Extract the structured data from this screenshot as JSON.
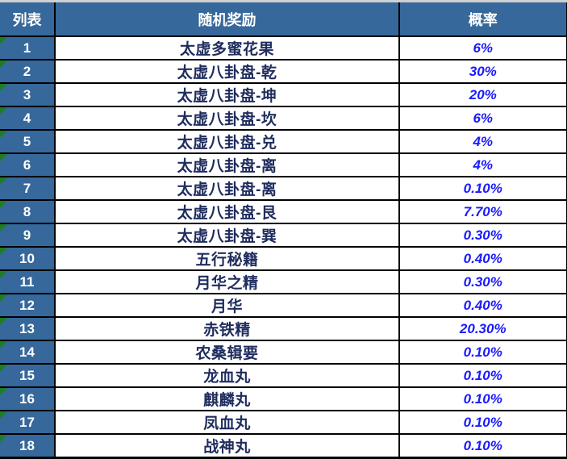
{
  "colors": {
    "header_bg": "#36689B",
    "header_text": "#FFFFFF",
    "reward_text": "#1F2C5E",
    "probability_text": "#1A1AFF",
    "triangle_green": "#1E7D24",
    "grid_border": "#000000",
    "top_strip": "#D0D0D0"
  },
  "table": {
    "headers": [
      "列表",
      "随机奖励",
      "概率"
    ],
    "rows": [
      {
        "index": "1",
        "reward": "太虚多蜜花果",
        "probability": "6%"
      },
      {
        "index": "2",
        "reward": "太虚八卦盘-乾",
        "probability": "30%"
      },
      {
        "index": "3",
        "reward": "太虚八卦盘-坤",
        "probability": "20%"
      },
      {
        "index": "4",
        "reward": "太虚八卦盘-坎",
        "probability": "6%"
      },
      {
        "index": "5",
        "reward": "太虚八卦盘-兑",
        "probability": "4%"
      },
      {
        "index": "6",
        "reward": "太虚八卦盘-离",
        "probability": "4%"
      },
      {
        "index": "7",
        "reward": "太虚八卦盘-离",
        "probability": "0.10%"
      },
      {
        "index": "8",
        "reward": "太虚八卦盘-艮",
        "probability": "7.70%"
      },
      {
        "index": "9",
        "reward": "太虚八卦盘-巽",
        "probability": "0.30%"
      },
      {
        "index": "10",
        "reward": "五行秘籍",
        "probability": "0.40%"
      },
      {
        "index": "11",
        "reward": "月华之精",
        "probability": "0.30%"
      },
      {
        "index": "12",
        "reward": "月华",
        "probability": "0.40%"
      },
      {
        "index": "13",
        "reward": "赤铁精",
        "probability": "20.30%"
      },
      {
        "index": "14",
        "reward": "农桑辑要",
        "probability": "0.10%"
      },
      {
        "index": "15",
        "reward": "龙血丸",
        "probability": "0.10%"
      },
      {
        "index": "16",
        "reward": "麒麟丸",
        "probability": "0.10%"
      },
      {
        "index": "17",
        "reward": "凤血丸",
        "probability": "0.10%"
      },
      {
        "index": "18",
        "reward": "战神丸",
        "probability": "0.10%"
      }
    ]
  }
}
